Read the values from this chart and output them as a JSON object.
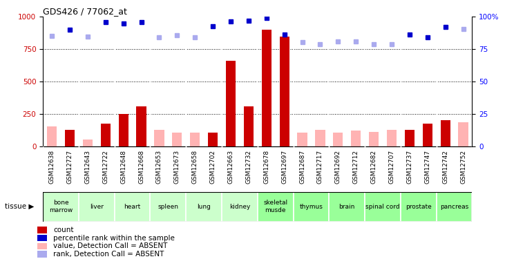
{
  "title": "GDS426 / 77062_at",
  "samples": [
    "GSM12638",
    "GSM12727",
    "GSM12643",
    "GSM12722",
    "GSM12648",
    "GSM12668",
    "GSM12653",
    "GSM12673",
    "GSM12658",
    "GSM12702",
    "GSM12663",
    "GSM12732",
    "GSM12678",
    "GSM12697",
    "GSM12687",
    "GSM12717",
    "GSM12692",
    "GSM12712",
    "GSM12682",
    "GSM12707",
    "GSM12737",
    "GSM12747",
    "GSM12742",
    "GSM12752"
  ],
  "tissues": [
    {
      "name": "bone\nmarrow",
      "start": 0,
      "end": 2,
      "green": false
    },
    {
      "name": "liver",
      "start": 2,
      "end": 4,
      "green": false
    },
    {
      "name": "heart",
      "start": 4,
      "end": 6,
      "green": false
    },
    {
      "name": "spleen",
      "start": 6,
      "end": 8,
      "green": false
    },
    {
      "name": "lung",
      "start": 8,
      "end": 10,
      "green": false
    },
    {
      "name": "kidney",
      "start": 10,
      "end": 12,
      "green": false
    },
    {
      "name": "skeletal\nmusde",
      "start": 12,
      "end": 14,
      "green": true
    },
    {
      "name": "thymus",
      "start": 14,
      "end": 16,
      "green": true
    },
    {
      "name": "brain",
      "start": 16,
      "end": 18,
      "green": true
    },
    {
      "name": "spinal cord",
      "start": 18,
      "end": 20,
      "green": true
    },
    {
      "name": "prostate",
      "start": 20,
      "end": 22,
      "green": true
    },
    {
      "name": "pancreas",
      "start": 22,
      "end": 24,
      "green": true
    }
  ],
  "bar_values": [
    0,
    130,
    0,
    175,
    250,
    310,
    0,
    0,
    0,
    105,
    660,
    310,
    900,
    850,
    0,
    0,
    0,
    0,
    0,
    0,
    130,
    175,
    200,
    0
  ],
  "absent_bar_values": [
    155,
    0,
    55,
    0,
    0,
    0,
    130,
    105,
    105,
    0,
    0,
    0,
    0,
    0,
    105,
    130,
    105,
    120,
    110,
    130,
    0,
    0,
    0,
    185
  ],
  "rank_present": [
    880,
    900,
    870,
    960,
    950,
    960,
    870,
    885,
    870,
    930,
    965,
    970,
    990,
    865,
    820,
    810,
    820,
    835,
    820,
    810,
    865,
    840,
    920,
    930
  ],
  "rank_absent": [
    855,
    0,
    850,
    0,
    0,
    0,
    840,
    860,
    840,
    0,
    0,
    0,
    0,
    0,
    805,
    790,
    810,
    810,
    790,
    790,
    0,
    0,
    0,
    905
  ],
  "absent_flags": [
    true,
    false,
    true,
    false,
    false,
    false,
    true,
    true,
    true,
    false,
    false,
    false,
    false,
    false,
    true,
    true,
    true,
    true,
    true,
    true,
    false,
    false,
    false,
    true
  ],
  "ylim_left": [
    0,
    1000
  ],
  "ylim_right": [
    0,
    100
  ],
  "yticks_left": [
    0,
    250,
    500,
    750,
    1000
  ],
  "yticks_right": [
    0,
    25,
    50,
    75,
    100
  ],
  "bar_color": "#cc0000",
  "absent_bar_color": "#ffb3b3",
  "rank_present_color": "#0000cc",
  "rank_absent_color": "#aaaaee",
  "green_tissue_color": "#99ff99",
  "grey_tissue_color": "#dddddd",
  "light_green_tissue": "#ccffcc",
  "legend_items": [
    {
      "label": "count",
      "color": "#cc0000"
    },
    {
      "label": "percentile rank within the sample",
      "color": "#0000cc"
    },
    {
      "label": "value, Detection Call = ABSENT",
      "color": "#ffb3b3"
    },
    {
      "label": "rank, Detection Call = ABSENT",
      "color": "#aaaaee"
    }
  ]
}
